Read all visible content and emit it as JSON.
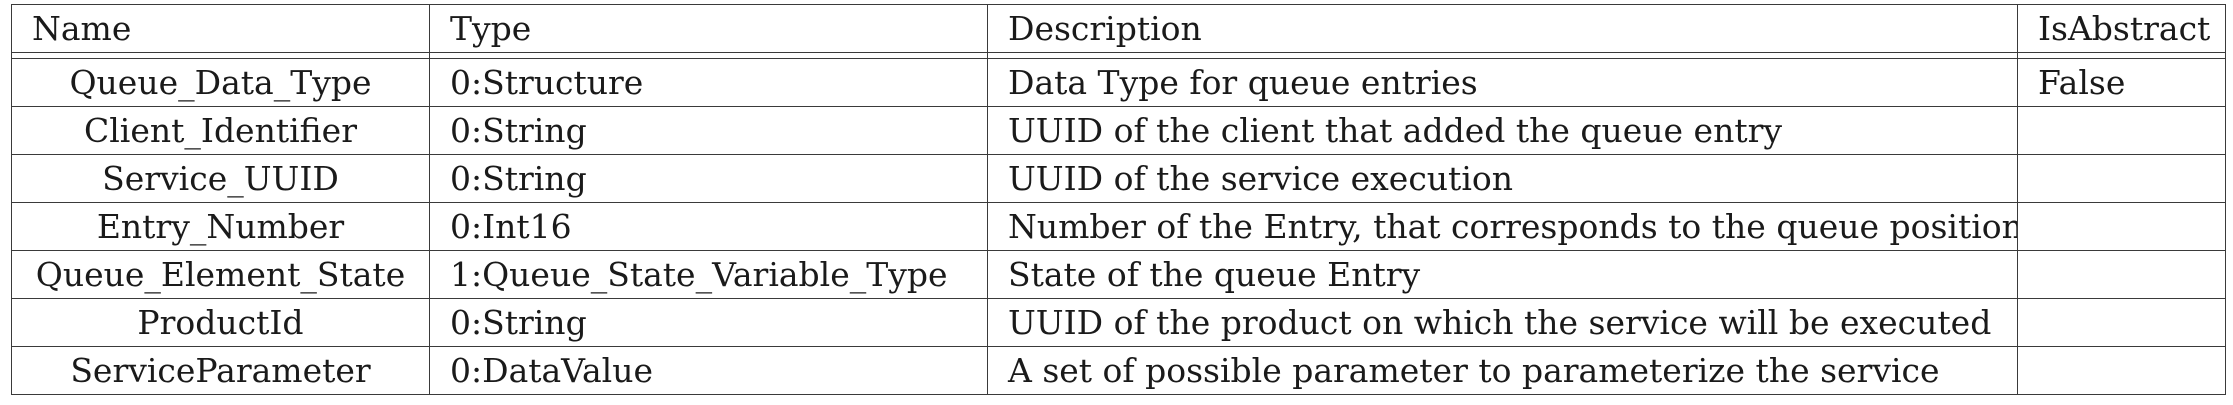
{
  "headers": {
    "name": "Name",
    "type": "Type",
    "description": "Description",
    "is_abstract": "IsAbstract"
  },
  "rows": [
    {
      "name": "Queue_Data_Type",
      "type": "0:Structure",
      "description": "Data Type for queue entries",
      "is_abstract": "False"
    },
    {
      "name": "Client_Identifier",
      "type": "0:String",
      "description": "UUID of the client that added the queue entry",
      "is_abstract": ""
    },
    {
      "name": "Service_UUID",
      "type": "0:String",
      "description": "UUID of the service execution",
      "is_abstract": ""
    },
    {
      "name": "Entry_Number",
      "type": "0:Int16",
      "description": "Number of the Entry, that corresponds to the queue position",
      "is_abstract": ""
    },
    {
      "name": "Queue_Element_State",
      "type": "1:Queue_State_Variable_Type",
      "description": "State of the queue Entry",
      "is_abstract": ""
    },
    {
      "name": "ProductId",
      "type": "0:String",
      "description": "UUID of the product on which the service will be executed",
      "is_abstract": ""
    },
    {
      "name": "ServiceParameter",
      "type": "0:DataValue",
      "description": "A set of possible parameter to parameterize the service",
      "is_abstract": ""
    }
  ]
}
